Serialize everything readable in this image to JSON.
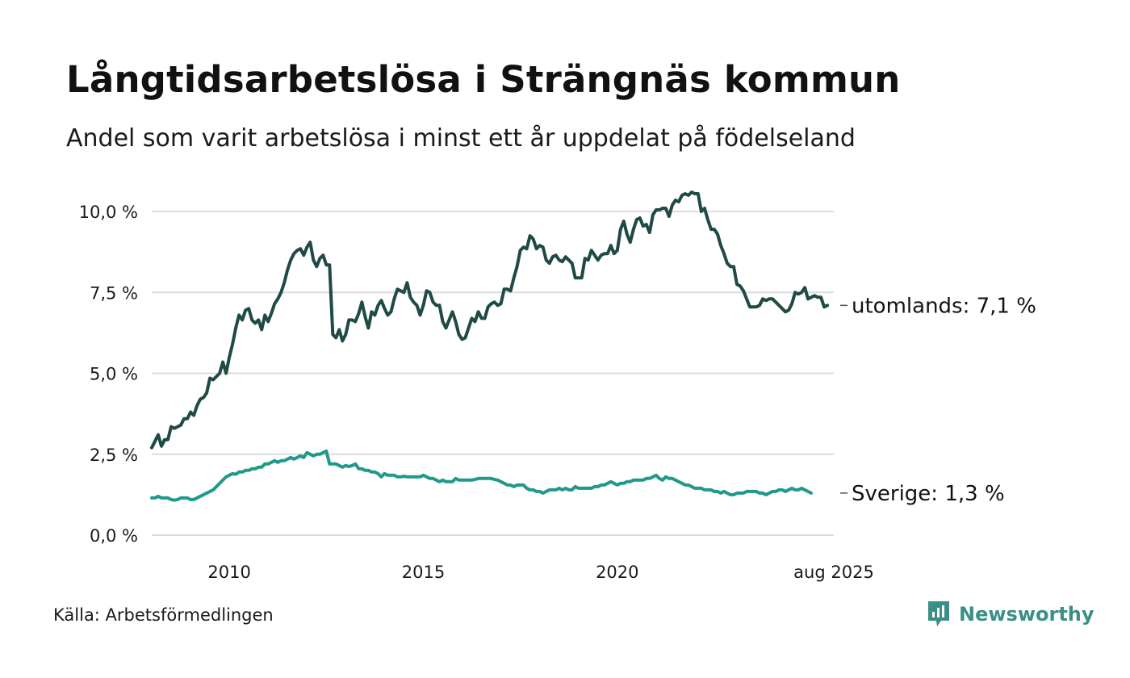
{
  "header": {
    "title": "Långtidsarbetslösa i Strängnäs kommun",
    "subtitle": "Andel som varit arbetslösa i minst ett år uppdelat på födelseland"
  },
  "footer": {
    "source": "Källa: Arbetsförmedlingen",
    "brand": "Newsworthy",
    "brand_icon": "bar-chart-logo-icon"
  },
  "colors": {
    "utomlands": "#1f4a45",
    "sverige": "#21998a",
    "grid": "#dcdcdc",
    "brand": "#3b8f86"
  },
  "chart_data": {
    "type": "line",
    "title": "Långtidsarbetslösa i Strängnäs kommun",
    "subtitle": "Andel som varit arbetslösa i minst ett år uppdelat på födelseland",
    "x_start": 2008.0,
    "x_step": 0.0833333,
    "xlim": [
      2008.0,
      2025.58
    ],
    "ylim": [
      0,
      10.5
    ],
    "x_ticks": [
      {
        "value": 2010,
        "label": "2010"
      },
      {
        "value": 2015,
        "label": "2015"
      },
      {
        "value": 2020,
        "label": "2020"
      },
      {
        "value": 2025.58,
        "label": "aug 2025"
      }
    ],
    "y_ticks": [
      {
        "value": 0,
        "label": "0,0 %"
      },
      {
        "value": 2.5,
        "label": "2,5 %"
      },
      {
        "value": 5,
        "label": "5,0 %"
      },
      {
        "value": 7.5,
        "label": "7,5 %"
      },
      {
        "value": 10,
        "label": "10,0 %"
      }
    ],
    "grid": true,
    "legend": "end-labels",
    "series": [
      {
        "name": "utomlands",
        "end_label": "utomlands: 7,1 %",
        "values": [
          2.7,
          2.9,
          3.1,
          2.75,
          2.95,
          2.95,
          3.35,
          3.3,
          3.35,
          3.4,
          3.6,
          3.6,
          3.8,
          3.7,
          4.0,
          4.2,
          4.25,
          4.4,
          4.85,
          4.8,
          4.9,
          5.0,
          5.35,
          5.0,
          5.5,
          5.9,
          6.4,
          6.8,
          6.65,
          6.95,
          7.0,
          6.65,
          6.55,
          6.65,
          6.35,
          6.8,
          6.6,
          6.85,
          7.15,
          7.3,
          7.5,
          7.8,
          8.2,
          8.5,
          8.7,
          8.8,
          8.85,
          8.65,
          8.9,
          9.05,
          8.5,
          8.3,
          8.55,
          8.65,
          8.35,
          8.35,
          6.2,
          6.1,
          6.35,
          6.0,
          6.2,
          6.65,
          6.65,
          6.6,
          6.85,
          7.2,
          6.75,
          6.4,
          6.9,
          6.8,
          7.1,
          7.25,
          7.0,
          6.8,
          6.9,
          7.3,
          7.6,
          7.55,
          7.5,
          7.8,
          7.35,
          7.2,
          7.1,
          6.8,
          7.1,
          7.55,
          7.5,
          7.2,
          7.1,
          7.1,
          6.6,
          6.4,
          6.65,
          6.9,
          6.6,
          6.2,
          6.05,
          6.1,
          6.4,
          6.7,
          6.6,
          6.9,
          6.7,
          6.7,
          7.05,
          7.15,
          7.2,
          7.1,
          7.15,
          7.6,
          7.6,
          7.55,
          7.95,
          8.3,
          8.8,
          8.9,
          8.85,
          9.25,
          9.15,
          8.85,
          8.95,
          8.9,
          8.5,
          8.4,
          8.6,
          8.65,
          8.5,
          8.45,
          8.6,
          8.5,
          8.4,
          7.95,
          7.95,
          7.95,
          8.55,
          8.5,
          8.8,
          8.65,
          8.5,
          8.65,
          8.7,
          8.7,
          8.95,
          8.7,
          8.8,
          9.45,
          9.7,
          9.3,
          9.05,
          9.45,
          9.75,
          9.8,
          9.55,
          9.6,
          9.35,
          9.9,
          10.05,
          10.05,
          10.1,
          10.1,
          9.85,
          10.2,
          10.35,
          10.3,
          10.5,
          10.55,
          10.5,
          10.6,
          10.55,
          10.55,
          10.0,
          10.1,
          9.75,
          9.45,
          9.45,
          9.3,
          8.95,
          8.7,
          8.4,
          8.3,
          8.3,
          7.75,
          7.7,
          7.55,
          7.3,
          7.05,
          7.05,
          7.05,
          7.1,
          7.3,
          7.25,
          7.3,
          7.3,
          7.2,
          7.1,
          7.0,
          6.9,
          6.95,
          7.15,
          7.5,
          7.45,
          7.5,
          7.65,
          7.3,
          7.35,
          7.4,
          7.35,
          7.35,
          7.05,
          7.1
        ]
      },
      {
        "name": "Sverige",
        "end_label": "Sverige: 1,3 %",
        "values": [
          1.15,
          1.15,
          1.2,
          1.15,
          1.15,
          1.15,
          1.1,
          1.08,
          1.1,
          1.15,
          1.15,
          1.15,
          1.1,
          1.1,
          1.15,
          1.2,
          1.25,
          1.3,
          1.35,
          1.4,
          1.5,
          1.6,
          1.7,
          1.8,
          1.85,
          1.9,
          1.88,
          1.95,
          1.95,
          2.0,
          2.0,
          2.05,
          2.05,
          2.1,
          2.1,
          2.2,
          2.2,
          2.25,
          2.3,
          2.25,
          2.3,
          2.3,
          2.35,
          2.4,
          2.35,
          2.4,
          2.45,
          2.4,
          2.55,
          2.5,
          2.45,
          2.5,
          2.5,
          2.55,
          2.6,
          2.2,
          2.2,
          2.2,
          2.15,
          2.1,
          2.15,
          2.12,
          2.15,
          2.2,
          2.05,
          2.05,
          2.0,
          2.0,
          1.95,
          1.95,
          1.9,
          1.8,
          1.9,
          1.85,
          1.85,
          1.85,
          1.8,
          1.8,
          1.82,
          1.8,
          1.8,
          1.8,
          1.8,
          1.8,
          1.85,
          1.8,
          1.75,
          1.75,
          1.7,
          1.65,
          1.7,
          1.65,
          1.65,
          1.65,
          1.75,
          1.7,
          1.7,
          1.7,
          1.7,
          1.7,
          1.72,
          1.75,
          1.75,
          1.75,
          1.75,
          1.75,
          1.72,
          1.7,
          1.65,
          1.6,
          1.55,
          1.55,
          1.5,
          1.55,
          1.55,
          1.55,
          1.45,
          1.4,
          1.4,
          1.35,
          1.35,
          1.3,
          1.35,
          1.4,
          1.4,
          1.4,
          1.45,
          1.4,
          1.45,
          1.4,
          1.4,
          1.5,
          1.45,
          1.45,
          1.45,
          1.45,
          1.45,
          1.5,
          1.5,
          1.55,
          1.55,
          1.6,
          1.65,
          1.6,
          1.55,
          1.6,
          1.6,
          1.65,
          1.65,
          1.7,
          1.7,
          1.7,
          1.7,
          1.75,
          1.75,
          1.8,
          1.85,
          1.75,
          1.7,
          1.8,
          1.75,
          1.75,
          1.7,
          1.65,
          1.6,
          1.55,
          1.55,
          1.5,
          1.45,
          1.45,
          1.45,
          1.4,
          1.4,
          1.4,
          1.35,
          1.35,
          1.3,
          1.35,
          1.3,
          1.25,
          1.25,
          1.3,
          1.3,
          1.3,
          1.35,
          1.35,
          1.35,
          1.35,
          1.3,
          1.3,
          1.25,
          1.3,
          1.35,
          1.35,
          1.4,
          1.4,
          1.35,
          1.4,
          1.45,
          1.4,
          1.4,
          1.45,
          1.4,
          1.35,
          1.3
        ]
      }
    ]
  }
}
